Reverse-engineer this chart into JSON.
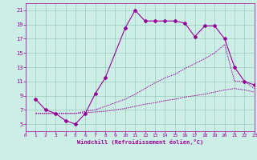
{
  "bg_color": "#cceee6",
  "line_color": "#990099",
  "grid_color": "#99ccbb",
  "xlabel": "Windchill (Refroidissement éolien,°C)",
  "curve1_x": [
    1,
    2,
    3,
    4,
    5,
    6,
    7,
    8,
    10,
    11,
    12,
    13,
    14,
    15,
    16,
    17,
    18,
    19,
    20,
    21,
    22,
    23
  ],
  "curve1_y": [
    8.5,
    7.0,
    6.5,
    5.5,
    5.0,
    6.5,
    9.3,
    11.5,
    18.5,
    21.0,
    19.5,
    19.5,
    19.5,
    19.5,
    19.2,
    17.3,
    18.8,
    18.8,
    17.0,
    13.0,
    11.0,
    10.5
  ],
  "curve2_x": [
    1,
    2,
    3,
    4,
    5,
    6,
    7,
    8,
    9,
    10,
    11,
    12,
    13,
    14,
    15,
    16,
    17,
    18,
    19,
    20,
    21,
    22,
    23
  ],
  "curve2_y": [
    6.5,
    6.5,
    6.5,
    6.5,
    6.5,
    6.8,
    7.0,
    7.5,
    8.0,
    8.5,
    9.2,
    10.0,
    10.8,
    11.5,
    12.0,
    12.8,
    13.5,
    14.2,
    15.0,
    16.2,
    11.0,
    11.0,
    10.0
  ],
  "curve3_x": [
    1,
    2,
    3,
    4,
    5,
    6,
    7,
    8,
    9,
    10,
    11,
    12,
    13,
    14,
    15,
    16,
    17,
    18,
    19,
    20,
    21,
    22,
    23
  ],
  "curve3_y": [
    6.5,
    6.5,
    6.5,
    6.5,
    6.5,
    6.6,
    6.7,
    6.8,
    7.0,
    7.2,
    7.5,
    7.8,
    8.0,
    8.3,
    8.5,
    8.8,
    9.0,
    9.2,
    9.5,
    9.8,
    10.0,
    9.8,
    9.5
  ],
  "ylim": [
    4.0,
    22.0
  ],
  "xlim": [
    0,
    23
  ],
  "yticks": [
    5,
    7,
    9,
    11,
    13,
    15,
    17,
    19,
    21
  ],
  "xticks": [
    0,
    1,
    2,
    3,
    4,
    5,
    6,
    7,
    8,
    9,
    10,
    11,
    12,
    13,
    14,
    15,
    16,
    17,
    18,
    19,
    20,
    21,
    22,
    23
  ]
}
